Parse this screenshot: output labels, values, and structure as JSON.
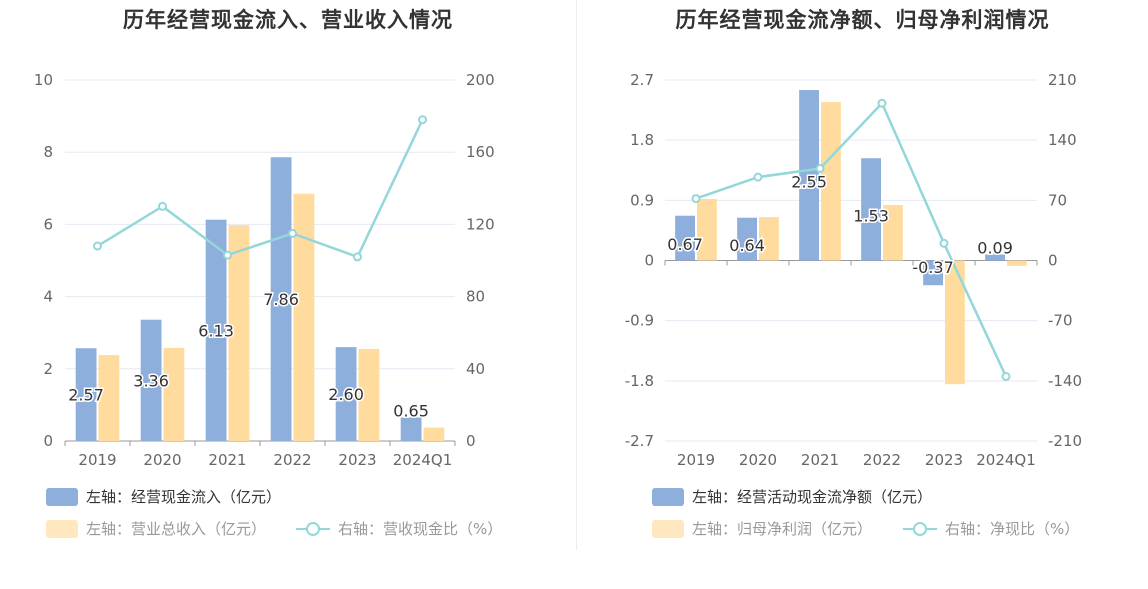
{
  "colors": {
    "bar1": "#8eaedb",
    "bar2": "#ffdc9e",
    "line": "#93d7d9",
    "grid": "#e6e9f2",
    "tick": "#666666",
    "axis": "#999999"
  },
  "chart_data": [
    {
      "type": "bar",
      "title": "历年经营现金流入、营业收入情况",
      "categories": [
        "2019",
        "2020",
        "2021",
        "2022",
        "2023",
        "2024Q1"
      ],
      "left_axis": {
        "ylim": [
          0,
          10
        ],
        "ticks": [
          "0",
          "2",
          "4",
          "6",
          "8",
          "10"
        ]
      },
      "right_axis": {
        "ylim": [
          0,
          200
        ],
        "ticks": [
          "0",
          "40",
          "80",
          "120",
          "160",
          "200"
        ]
      },
      "series": [
        {
          "name": "左轴：经营现金流入（亿元）",
          "type": "bar",
          "axis": "left",
          "values": [
            2.57,
            3.36,
            6.13,
            7.86,
            2.6,
            0.65
          ],
          "labels": [
            "2.57",
            "3.36",
            "6.13",
            "7.86",
            "2.60",
            "0.65"
          ]
        },
        {
          "name": "左轴：营业总收入（亿元）",
          "type": "bar",
          "axis": "left",
          "values": [
            2.38,
            2.58,
            5.98,
            6.85,
            2.55,
            0.37
          ]
        },
        {
          "name": "右轴：营收现金比（%）",
          "type": "line",
          "axis": "right",
          "values": [
            108,
            130,
            103,
            115,
            102,
            178
          ]
        }
      ]
    },
    {
      "type": "bar",
      "title": "历年经营现金流净额、归母净利润情况",
      "categories": [
        "2019",
        "2020",
        "2021",
        "2022",
        "2023",
        "2024Q1"
      ],
      "left_axis": {
        "ylim": [
          -2.7,
          2.7
        ],
        "ticks": [
          "-2.7",
          "-1.8",
          "-0.9",
          "0",
          "0.9",
          "1.8",
          "2.7"
        ]
      },
      "right_axis": {
        "ylim": [
          -210,
          210
        ],
        "ticks": [
          "-210",
          "-140",
          "-70",
          "0",
          "70",
          "140",
          "210"
        ]
      },
      "series": [
        {
          "name": "左轴：经营活动现金流净额（亿元）",
          "type": "bar",
          "axis": "left",
          "values": [
            0.67,
            0.64,
            2.55,
            1.53,
            -0.37,
            0.09
          ],
          "labels": [
            "0.67",
            "0.64",
            "2.55",
            "1.53",
            "-0.37",
            "0.09"
          ]
        },
        {
          "name": "左轴：归母净利润（亿元）",
          "type": "bar",
          "axis": "left",
          "values": [
            0.92,
            0.65,
            2.37,
            0.83,
            -1.85,
            -0.08
          ]
        },
        {
          "name": "右轴：净现比（%）",
          "type": "line",
          "axis": "right",
          "values": [
            72,
            97,
            107,
            183,
            20,
            -135
          ]
        }
      ]
    }
  ]
}
